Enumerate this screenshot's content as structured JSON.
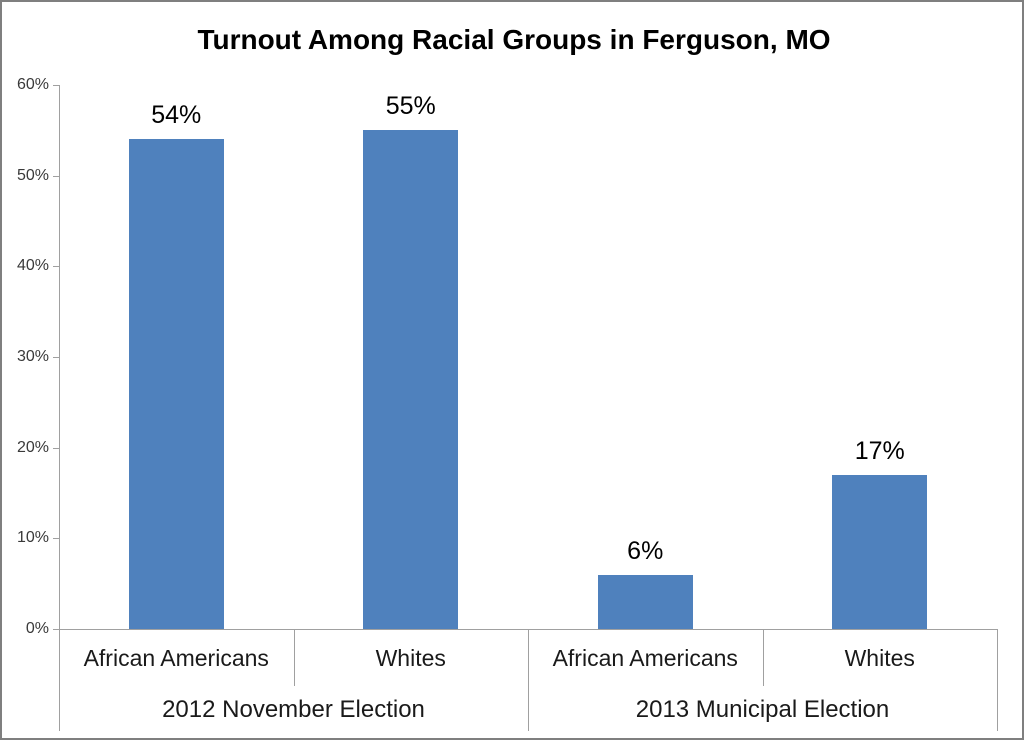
{
  "chart_data": {
    "type": "bar",
    "title": "Turnout Among Racial Groups in Ferguson, MO",
    "groups": [
      {
        "label": "2012 November Election",
        "categories": [
          "African Americans",
          "Whites"
        ],
        "values": [
          54,
          55
        ],
        "data_labels": [
          "54%",
          "55%"
        ]
      },
      {
        "label": "2013 Municipal Election",
        "categories": [
          "African Americans",
          "Whites"
        ],
        "values": [
          6,
          17
        ],
        "data_labels": [
          "6%",
          "17%"
        ]
      }
    ],
    "categories": [
      "African Americans",
      "Whites",
      "African Americans",
      "Whites"
    ],
    "values": [
      54,
      55,
      6,
      17
    ],
    "data_labels": [
      "54%",
      "55%",
      "6%",
      "17%"
    ],
    "xlabel": "",
    "ylabel": "",
    "ylim": [
      0,
      60
    ],
    "y_tick_step": 10,
    "y_tick_labels": [
      "0%",
      "10%",
      "20%",
      "30%",
      "40%",
      "50%",
      "60%"
    ],
    "grid": false,
    "legend": false,
    "bar_color": "#4F81BD",
    "axis_color": "#a0a0a0",
    "title_color": "#000000",
    "label_color": "#000000"
  }
}
